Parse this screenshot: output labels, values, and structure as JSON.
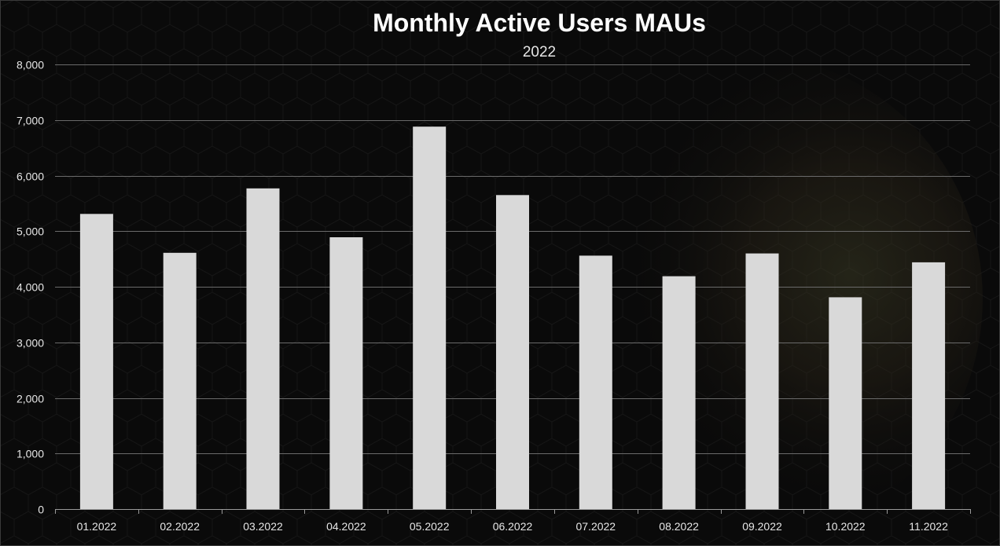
{
  "chart_data": {
    "type": "bar",
    "title": "Monthly Active Users MAUs",
    "subtitle": "2022",
    "xlabel": "",
    "ylabel": "",
    "categories": [
      "01.2022",
      "02.2022",
      "03.2022",
      "04.2022",
      "05.2022",
      "06.2022",
      "07.2022",
      "08.2022",
      "09.2022",
      "10.2022",
      "11.2022"
    ],
    "values": [
      5310,
      4610,
      5770,
      4890,
      6880,
      5650,
      4560,
      4190,
      4600,
      3810,
      4440
    ],
    "ylim": [
      0,
      8000
    ],
    "yticks": [
      "0",
      "1,000",
      "2,000",
      "3,000",
      "4,000",
      "5,000",
      "6,000",
      "7,000",
      "8,000"
    ],
    "grid": true,
    "legend": "none",
    "colors": {
      "bar": "#d9d9d9",
      "background": "#0a0a0a",
      "gridline": "#6a6a6a",
      "text": "#e6e6e6",
      "title": "#ffffff"
    }
  }
}
